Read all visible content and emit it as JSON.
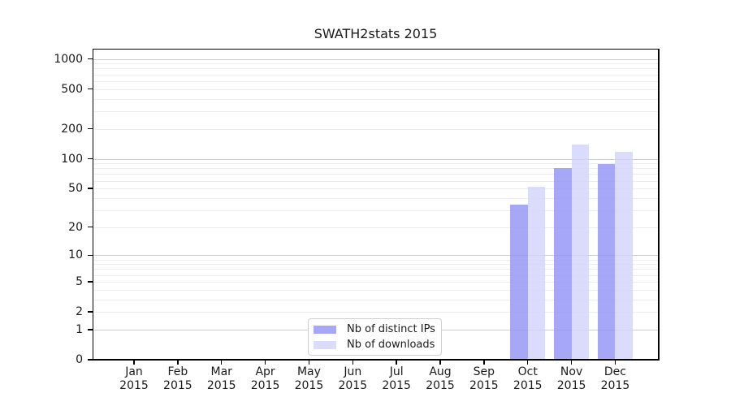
{
  "chart_data": {
    "type": "bar",
    "title": "SWATH2stats 2015",
    "categories": [
      "Jan",
      "Feb",
      "Mar",
      "Apr",
      "May",
      "Jun",
      "Jul",
      "Aug",
      "Sep",
      "Oct",
      "Nov",
      "Dec"
    ],
    "x_year_label": "2015",
    "series": [
      {
        "name": "Nb of distinct IPs",
        "color": "rgba(145,145,245,0.8)",
        "values": [
          0,
          0,
          0,
          0,
          0,
          0,
          0,
          0,
          0,
          34,
          80,
          88
        ]
      },
      {
        "name": "Nb of downloads",
        "color": "rgba(210,210,250,0.8)",
        "values": [
          0,
          0,
          0,
          0,
          0,
          0,
          0,
          0,
          0,
          52,
          140,
          118
        ]
      }
    ],
    "y_scale": "log1p",
    "y_ticks": [
      0,
      1,
      2,
      5,
      10,
      20,
      50,
      100,
      200,
      500,
      1000
    ],
    "y_max": 1240,
    "grid_major": [
      1,
      10,
      100,
      1000
    ],
    "grid_minor": [
      2,
      3,
      4,
      5,
      6,
      7,
      8,
      9,
      20,
      30,
      40,
      50,
      60,
      70,
      80,
      90,
      200,
      300,
      400,
      500,
      600,
      700,
      800,
      900
    ],
    "grid_on": true,
    "legend_position": "bottom-center",
    "colors": {
      "grid_major": "#cdcdcd",
      "grid_minor": "#ededed",
      "spine": "#000000",
      "text": "#1a1a1a",
      "legend_border": "#cfcfcf"
    }
  }
}
